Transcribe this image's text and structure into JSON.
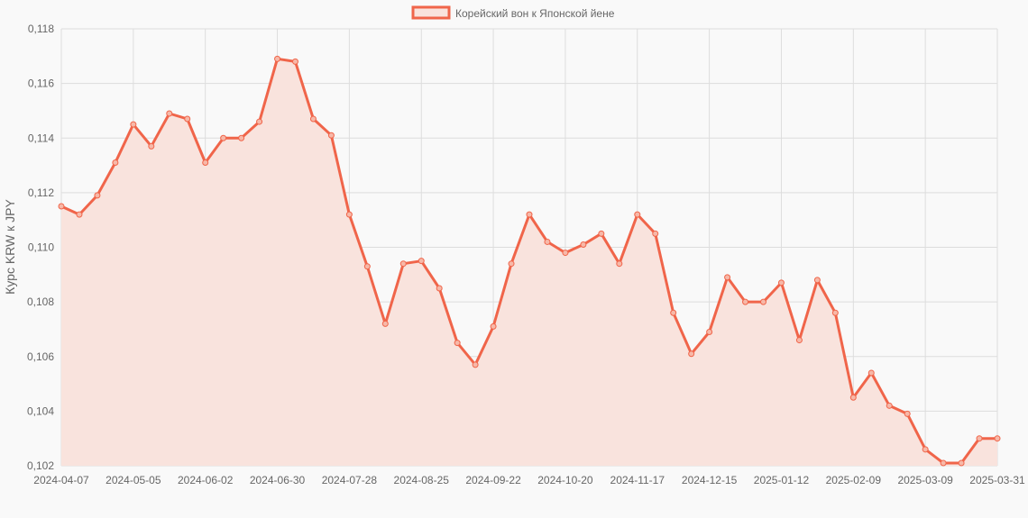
{
  "chart_data": {
    "type": "line",
    "title": "",
    "ylabel": "Курс KRW к JPY",
    "xlabel": "",
    "ylim": [
      0.102,
      0.118
    ],
    "yticks": [
      "0,102",
      "0,104",
      "0,106",
      "0,108",
      "0,110",
      "0,112",
      "0,114",
      "0,116",
      "0,118"
    ],
    "grid": true,
    "legend_position": "top",
    "line_color": "#f0654a",
    "fill_color": "#f9e3dd",
    "x": [
      "2024-04-07",
      "2024-04-14",
      "2024-04-21",
      "2024-04-28",
      "2024-05-05",
      "2024-05-12",
      "2024-05-19",
      "2024-05-26",
      "2024-06-02",
      "2024-06-09",
      "2024-06-16",
      "2024-06-23",
      "2024-06-30",
      "2024-07-07",
      "2024-07-14",
      "2024-07-21",
      "2024-07-28",
      "2024-08-04",
      "2024-08-11",
      "2024-08-18",
      "2024-08-25",
      "2024-09-01",
      "2024-09-08",
      "2024-09-15",
      "2024-09-22",
      "2024-09-29",
      "2024-10-06",
      "2024-10-13",
      "2024-10-20",
      "2024-10-27",
      "2024-11-03",
      "2024-11-10",
      "2024-11-17",
      "2024-11-24",
      "2024-12-01",
      "2024-12-08",
      "2024-12-15",
      "2024-12-22",
      "2024-12-29",
      "2025-01-05",
      "2025-01-12",
      "2025-01-19",
      "2025-01-26",
      "2025-02-02",
      "2025-02-09",
      "2025-02-16",
      "2025-02-23",
      "2025-03-02",
      "2025-03-09",
      "2025-03-16",
      "2025-03-23",
      "2025-03-30",
      "2025-03-31"
    ],
    "xtick_labels": [
      "2024-04-07",
      "2024-05-05",
      "2024-06-02",
      "2024-06-30",
      "2024-07-28",
      "2024-08-25",
      "2024-09-22",
      "2024-10-20",
      "2024-11-17",
      "2024-12-15",
      "2025-01-12",
      "2025-02-09",
      "2025-03-09",
      "2025-03-31"
    ],
    "series": [
      {
        "name": "Корейский вон к Японской йене",
        "values": [
          0.1115,
          0.1112,
          0.1119,
          0.1131,
          0.1145,
          0.1137,
          0.1149,
          0.1147,
          0.1131,
          0.114,
          0.114,
          0.1146,
          0.1169,
          0.1168,
          0.1147,
          0.1141,
          0.1112,
          0.1093,
          0.1072,
          0.1094,
          0.1095,
          0.1085,
          0.1065,
          0.1057,
          0.1071,
          0.1094,
          0.1112,
          0.1102,
          0.1098,
          0.1101,
          0.1105,
          0.1094,
          0.1112,
          0.1105,
          0.1076,
          0.1061,
          0.1069,
          0.1089,
          0.108,
          0.108,
          0.1087,
          0.1066,
          0.1088,
          0.1076,
          0.1045,
          0.1054,
          0.1042,
          0.1039,
          0.1026,
          0.1021,
          0.1021,
          0.103,
          0.103
        ]
      }
    ]
  }
}
